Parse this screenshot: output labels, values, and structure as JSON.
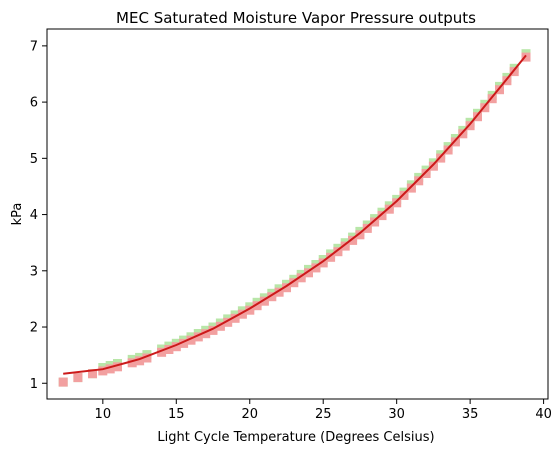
{
  "chart_data": {
    "type": "scatter",
    "title": "MEC Saturated Moisture Vapor Pressure outputs",
    "xlabel": "Light Cycle Temperature (Degrees Celsius)",
    "ylabel": "kPa",
    "xlim": [
      6.2,
      40.3
    ],
    "ylim": [
      0.72,
      7.3
    ],
    "xticks": [
      10,
      15,
      20,
      25,
      30,
      35,
      40
    ],
    "yticks": [
      1,
      2,
      3,
      4,
      5,
      6,
      7
    ],
    "grid": false,
    "legend": "none",
    "series": [
      {
        "marker": "square",
        "color": "#b8e6a8",
        "offset": 0.03,
        "x": [
          7.3,
          8.3,
          9.3,
          10.0,
          10.5,
          11.0,
          12.0,
          12.5,
          13.0,
          14.0,
          14.5,
          15.0,
          15.5,
          16.0,
          16.5,
          17.0,
          17.5,
          18.0,
          18.5,
          19.0,
          19.5,
          20.0,
          20.5,
          21.0,
          21.5,
          22.0,
          22.5,
          23.0,
          23.5,
          24.0,
          24.5,
          25.0,
          25.5,
          26.0,
          26.5,
          27.0,
          27.5,
          28.0,
          28.5,
          29.0,
          29.5,
          30.0,
          30.5,
          31.0,
          31.5,
          32.0,
          32.5,
          33.0,
          33.5,
          34.0,
          34.5,
          35.0,
          35.5,
          36.0,
          36.5,
          37.0,
          37.5,
          38.0,
          38.8
        ]
      },
      {
        "marker": "square",
        "color": "#f2a0a0",
        "offset": -0.03,
        "x": [
          7.3,
          8.3,
          9.3,
          10.0,
          10.5,
          11.0,
          12.0,
          12.5,
          13.0,
          14.0,
          14.5,
          15.0,
          15.5,
          16.0,
          16.5,
          17.0,
          17.5,
          18.0,
          18.5,
          19.0,
          19.5,
          20.0,
          20.5,
          21.0,
          21.5,
          22.0,
          22.5,
          23.0,
          23.5,
          24.0,
          24.5,
          25.0,
          25.5,
          26.0,
          26.5,
          27.0,
          27.5,
          28.0,
          28.5,
          29.0,
          29.5,
          30.0,
          30.5,
          31.0,
          31.5,
          32.0,
          32.5,
          33.0,
          33.5,
          34.0,
          34.5,
          35.0,
          35.5,
          36.0,
          36.5,
          37.0,
          37.5,
          38.0,
          38.8
        ]
      },
      {
        "type": "line",
        "color": "#cc1a1a",
        "x": [
          7.3,
          10,
          12.5,
          15,
          17.5,
          20,
          22.5,
          25,
          27.5,
          30,
          32.5,
          35,
          37.5,
          38.8
        ],
        "y": [
          1.17,
          1.25,
          1.43,
          1.68,
          1.97,
          2.33,
          2.73,
          3.17,
          3.67,
          4.24,
          4.89,
          5.61,
          6.41,
          6.83
        ]
      }
    ]
  }
}
